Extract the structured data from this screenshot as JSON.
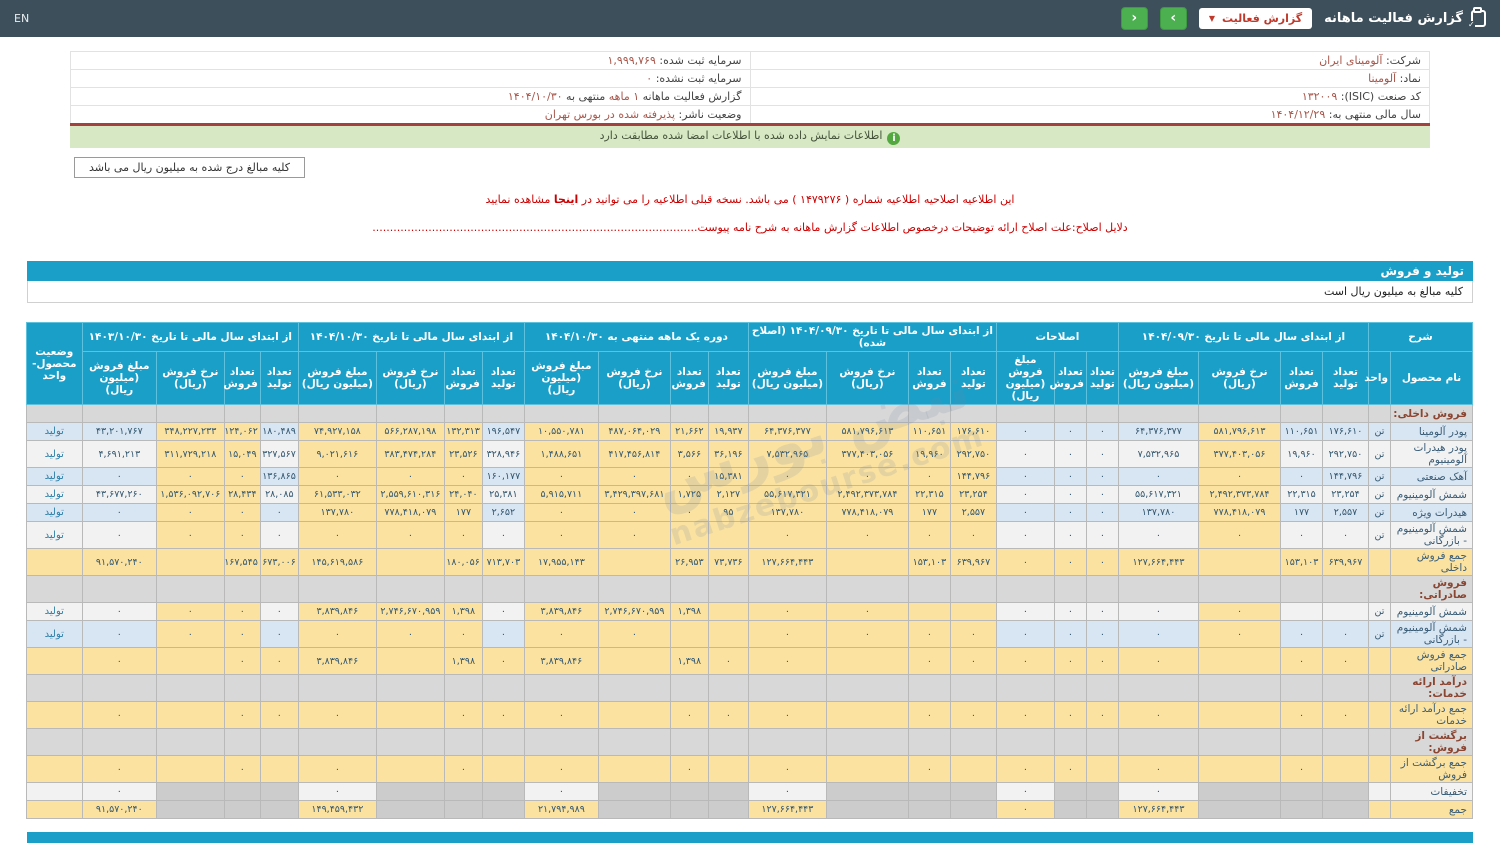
{
  "navbar": {
    "title": "گزارش فعالیت ماهانه",
    "report_button_label": "گزارش فعالیت",
    "nav_next": "›",
    "nav_prev": "‹",
    "language": "EN"
  },
  "info": {
    "right": [
      {
        "label": "شرکت:",
        "value": "آلومینای ایران"
      },
      {
        "label": "نماد:",
        "value": "آلومینا"
      },
      {
        "label": "کد صنعت (ISIC):",
        "value": "۱۳۲۰۰۹"
      },
      {
        "label": "سال مالی منتهی به:",
        "value": "۱۴۰۴/۱۲/۲۹"
      }
    ],
    "left": [
      {
        "label": "سرمایه ثبت شده:",
        "value": "۱,۹۹۹,۷۶۹"
      },
      {
        "label": "سرمایه ثبت نشده:",
        "value": "۰"
      },
      {
        "label": "گزارش فعالیت ماهانه ",
        "value": "۱ ماهه",
        "suffix": " منتهی به ",
        "value2": "۱۴۰۴/۱۰/۳۰"
      },
      {
        "label": "وضعیت ناشر:",
        "value": "پذیرفته شده در بورس تهران"
      }
    ]
  },
  "alert_text": "اطلاعات نمایش داده شده با اطلاعات امضا شده مطابقت دارد",
  "million_note": "کلیه مبالغ درج شده به میلیون ریال می باشد",
  "correction": {
    "line1_pre": "این اطلاعیه اصلاحیه اطلاعیه شماره ( ۱۴۷۹۲۷۶ ) می باشد. نسخه قبلی اطلاعیه را می توانید در ",
    "line1_link": "اینجا",
    "line1_post": " مشاهده نمایید",
    "line2": "دلایل اصلاح:علت اصلاح ارائه توضیحات درخصوص اطلاعات گزارش ماهانه به شرح نامه پیوست............................................................................................."
  },
  "section_bar": "تولید و فروش",
  "amounts_note": "کلیه مبالغ به میلیون ریال است",
  "colors": {
    "accent_teal": "#1a9fc9",
    "navbar_bg": "#3d4f5b",
    "green_button": "#4caf50",
    "wheat_highlight": "#fbe2a0",
    "blue_stripe": "#d8e5f2",
    "gray_disabled": "#cccccc",
    "alert_green": "#d7e9c4",
    "danger_red": "#cc0000",
    "info_value_brown": "#a8574b"
  },
  "watermark": {
    "line1": "نبض بورس",
    "line2": "nabzebourse.com"
  },
  "table": {
    "desc_header": "شرح",
    "name_header": "نام محصول",
    "unit_header": "واحد",
    "status_header": "وضعیت محصول-واحد",
    "groups": [
      {
        "label": "از ابتدای سال مالی تا تاریخ ۱۴۰۴/۰۹/۳۰",
        "cols": [
          "تعداد تولید",
          "تعداد فروش",
          "نرخ فروش (ریال)",
          "مبلغ فروش (میلیون ریال)"
        ]
      },
      {
        "label": "اصلاحات",
        "cols": [
          "تعداد تولید",
          "تعداد فروش",
          "مبلغ فروش (میلیون ریال)"
        ]
      },
      {
        "label": "از ابتدای سال مالی تا تاریخ ۱۴۰۴/۰۹/۳۰ (اصلاح شده)",
        "cols": [
          "تعداد تولید",
          "تعداد فروش",
          "نرخ فروش (ریال)",
          "مبلغ فروش (میلیون ریال)"
        ]
      },
      {
        "label": "دوره یک ماهه منتهی به ۱۴۰۴/۱۰/۳۰",
        "cols": [
          "تعداد تولید",
          "تعداد فروش",
          "نرخ فروش (ریال)",
          "مبلغ فروش (میلیون ریال)"
        ]
      },
      {
        "label": "از ابتدای سال مالی تا تاریخ ۱۴۰۴/۱۰/۳۰",
        "cols": [
          "تعداد تولید",
          "تعداد فروش",
          "نرخ فروش (ریال)",
          "مبلغ فروش (میلیون ریال)"
        ]
      },
      {
        "label": "از ابتدای سال مالی تا تاریخ ۱۴۰۳/۱۰/۳۰",
        "cols": [
          "تعداد تولید",
          "تعداد فروش",
          "نرخ فروش (ریال)",
          "مبلغ فروش (میلیون ریال)"
        ]
      }
    ],
    "rows": [
      {
        "t": "section",
        "name": "فروش داخلی:"
      },
      {
        "t": "data",
        "stripe": "b",
        "name": "پودر آلومینا",
        "unit": "تن",
        "status": "تولید",
        "vals": [
          "۱۷۶,۶۱۰",
          "۱۱۰,۶۵۱",
          "۵۸۱,۷۹۶,۶۱۳",
          "۶۴,۳۷۶,۳۷۷",
          "۰",
          "۰",
          "۰",
          "۱۷۶,۶۱۰",
          "۱۱۰,۶۵۱",
          "۵۸۱,۷۹۶,۶۱۳",
          "۶۴,۳۷۶,۳۷۷",
          "۱۹,۹۳۷",
          "۲۱,۶۶۲",
          "۴۸۷,۰۶۴,۰۲۹",
          "۱۰,۵۵۰,۷۸۱",
          "۱۹۶,۵۴۷",
          "۱۳۲,۳۱۳",
          "۵۶۶,۲۸۷,۱۹۸",
          "۷۴,۹۲۷,۱۵۸",
          "۱۸۰,۴۸۹",
          "۱۲۴,۰۶۲",
          "۳۴۸,۲۲۷,۲۳۳",
          "۴۳,۲۰۱,۷۶۷"
        ]
      },
      {
        "t": "data",
        "stripe": "w",
        "name": "پودر هیدرات آلومینیوم",
        "unit": "تن",
        "status": "تولید",
        "vals": [
          "۲۹۲,۷۵۰",
          "۱۹,۹۶۰",
          "۳۷۷,۴۰۳,۰۵۶",
          "۷,۵۳۲,۹۶۵",
          "۰",
          "۰",
          "۰",
          "۲۹۲,۷۵۰",
          "۱۹,۹۶۰",
          "۳۷۷,۴۰۳,۰۵۶",
          "۷,۵۳۲,۹۶۵",
          "۳۶,۱۹۶",
          "۳,۵۶۶",
          "۴۱۷,۴۵۶,۸۱۴",
          "۱,۴۸۸,۶۵۱",
          "۳۲۸,۹۴۶",
          "۲۳,۵۲۶",
          "۳۸۳,۴۷۴,۲۸۴",
          "۹,۰۲۱,۶۱۶",
          "۳۲۷,۵۶۷",
          "۱۵,۰۴۹",
          "۳۱۱,۷۲۹,۲۱۸",
          "۴,۶۹۱,۲۱۳"
        ]
      },
      {
        "t": "data",
        "stripe": "b",
        "name": "آهک صنعتی",
        "unit": "تن",
        "status": "تولید",
        "vals": [
          "۱۴۴,۷۹۶",
          "۰",
          "۰",
          "۰",
          "۰",
          "۰",
          "۰",
          "۱۴۴,۷۹۶",
          "۰",
          "۰",
          "۰",
          "۱۵,۳۸۱",
          "۰",
          "۰",
          "۰",
          "۱۶۰,۱۷۷",
          "۰",
          "۰",
          "۰",
          "۱۳۶,۸۶۵",
          "۰",
          "۰",
          "۰"
        ]
      },
      {
        "t": "data",
        "stripe": "w",
        "name": "شمش آلومینیوم",
        "unit": "تن",
        "status": "تولید",
        "vals": [
          "۲۳,۲۵۴",
          "۲۲,۳۱۵",
          "۲,۴۹۲,۳۷۳,۷۸۴",
          "۵۵,۶۱۷,۳۲۱",
          "۰",
          "۰",
          "۰",
          "۲۳,۲۵۴",
          "۲۲,۳۱۵",
          "۲,۴۹۲,۳۷۳,۷۸۴",
          "۵۵,۶۱۷,۳۲۱",
          "۲,۱۲۷",
          "۱,۷۲۵",
          "۳,۴۲۹,۳۹۷,۶۸۱",
          "۵,۹۱۵,۷۱۱",
          "۲۵,۳۸۱",
          "۲۴,۰۴۰",
          "۲,۵۵۹,۶۱۰,۳۱۶",
          "۶۱,۵۳۳,۰۳۲",
          "۲۸,۰۸۵",
          "۲۸,۴۳۴",
          "۱,۵۳۶,۰۹۲,۷۰۶",
          "۴۳,۶۷۷,۲۶۰"
        ]
      },
      {
        "t": "data",
        "stripe": "b",
        "name": "هیدرات ویژه",
        "unit": "تن",
        "status": "تولید",
        "vals": [
          "۲,۵۵۷",
          "۱۷۷",
          "۷۷۸,۴۱۸,۰۷۹",
          "۱۳۷,۷۸۰",
          "۰",
          "۰",
          "۰",
          "۲,۵۵۷",
          "۱۷۷",
          "۷۷۸,۴۱۸,۰۷۹",
          "۱۳۷,۷۸۰",
          "۹۵",
          "۰",
          "۰",
          "۰",
          "۲,۶۵۲",
          "۱۷۷",
          "۷۷۸,۴۱۸,۰۷۹",
          "۱۳۷,۷۸۰",
          "۰",
          "۰",
          "۰",
          "۰"
        ]
      },
      {
        "t": "data",
        "stripe": "w",
        "name": "شمش آلومینیوم - بازرگانی",
        "unit": "تن",
        "status": "تولید",
        "vals": [
          "۰",
          "۰",
          "۰",
          "۰",
          "۰",
          "۰",
          "۰",
          "۰",
          "۰",
          "۰",
          "۰",
          "",
          "",
          "۰",
          "۰",
          "۰",
          "۰",
          "۰",
          "۰",
          "۰",
          "۰",
          "۰",
          "۰"
        ]
      },
      {
        "t": "total",
        "name": "جمع فروش داخلی",
        "vals": [
          "۶۳۹,۹۶۷",
          "۱۵۳,۱۰۳",
          "",
          "۱۲۷,۶۶۴,۴۴۳",
          "۰",
          "۰",
          "۰",
          "۶۳۹,۹۶۷",
          "۱۵۳,۱۰۳",
          "",
          "۱۲۷,۶۶۴,۴۴۳",
          "۷۳,۷۳۶",
          "۲۶,۹۵۳",
          "",
          "۱۷,۹۵۵,۱۴۳",
          "۷۱۳,۷۰۳",
          "۱۸۰,۰۵۶",
          "",
          "۱۴۵,۶۱۹,۵۸۶",
          "۶۷۳,۰۰۶",
          "۱۶۷,۵۴۵",
          "",
          "۹۱,۵۷۰,۲۴۰"
        ]
      },
      {
        "t": "section",
        "name": "فروش صادراتی:"
      },
      {
        "t": "data",
        "stripe": "w",
        "name": "شمش آلومینیوم",
        "unit": "تن",
        "status": "تولید",
        "vals": [
          "",
          "",
          "۰",
          "۰",
          "۰",
          "۰",
          "۰",
          "",
          "",
          "۰",
          "۰",
          "",
          "۱,۳۹۸",
          "۲,۷۴۶,۶۷۰,۹۵۹",
          "۳,۸۳۹,۸۴۶",
          "۰",
          "۱,۳۹۸",
          "۲,۷۴۶,۶۷۰,۹۵۹",
          "۳,۸۳۹,۸۴۶",
          "۰",
          "۰",
          "۰",
          "۰"
        ]
      },
      {
        "t": "data",
        "stripe": "b",
        "name": "شمش آلومینیوم - بازرگانی",
        "unit": "تن",
        "status": "تولید",
        "vals": [
          "۰",
          "۰",
          "۰",
          "۰",
          "۰",
          "۰",
          "۰",
          "۰",
          "۰",
          "۰",
          "۰",
          "",
          "",
          "۰",
          "۰",
          "۰",
          "۰",
          "۰",
          "۰",
          "۰",
          "۰",
          "۰",
          "۰"
        ]
      },
      {
        "t": "total",
        "name": "جمع فروش صادراتی",
        "vals": [
          "۰",
          "۰",
          "",
          "۰",
          "۰",
          "۰",
          "۰",
          "۰",
          "۰",
          "",
          "۰",
          "۰",
          "۱,۳۹۸",
          "",
          "۳,۸۳۹,۸۴۶",
          "۰",
          "۱,۳۹۸",
          "",
          "۳,۸۳۹,۸۴۶",
          "۰",
          "۰",
          "",
          "۰"
        ]
      },
      {
        "t": "section",
        "name": "درآمد ارائه خدمات:"
      },
      {
        "t": "total",
        "name": "جمع درآمد ارائه خدمات",
        "vals": [
          "۰",
          "۰",
          "",
          "۰",
          "۰",
          "۰",
          "۰",
          "۰",
          "۰",
          "",
          "۰",
          "۰",
          "۰",
          "",
          "۰",
          "۰",
          "۰",
          "",
          "۰",
          "۰",
          "۰",
          "",
          "۰"
        ]
      },
      {
        "t": "section",
        "name": "برگشت از فروش:"
      },
      {
        "t": "total",
        "name": "جمع برگشت از فروش",
        "vals": [
          "",
          "۰",
          "",
          "۰",
          "",
          "۰",
          "۰",
          "",
          "۰",
          "",
          "۰",
          "",
          "۰",
          "",
          "۰",
          "",
          "۰",
          "",
          "۰",
          "",
          "۰",
          "",
          "۰"
        ]
      },
      {
        "t": "discount",
        "name": "تخفیفات",
        "vals": [
          "",
          "",
          "",
          "۰",
          "",
          "",
          "۰",
          "",
          "",
          "",
          "۰",
          "",
          "",
          "",
          "۰",
          "",
          "",
          "",
          "۰",
          "",
          "",
          "",
          "۰"
        ]
      },
      {
        "t": "grand",
        "name": "جمع",
        "vals": [
          "",
          "",
          "",
          "۱۲۷,۶۶۴,۴۴۳",
          "",
          "",
          "۰",
          "",
          "",
          "",
          "۱۲۷,۶۶۴,۴۴۳",
          "",
          "",
          "",
          "۲۱,۷۹۴,۹۸۹",
          "",
          "",
          "",
          "۱۴۹,۴۵۹,۴۳۲",
          "",
          "",
          "",
          "۹۱,۵۷۰,۲۴۰"
        ]
      }
    ]
  }
}
